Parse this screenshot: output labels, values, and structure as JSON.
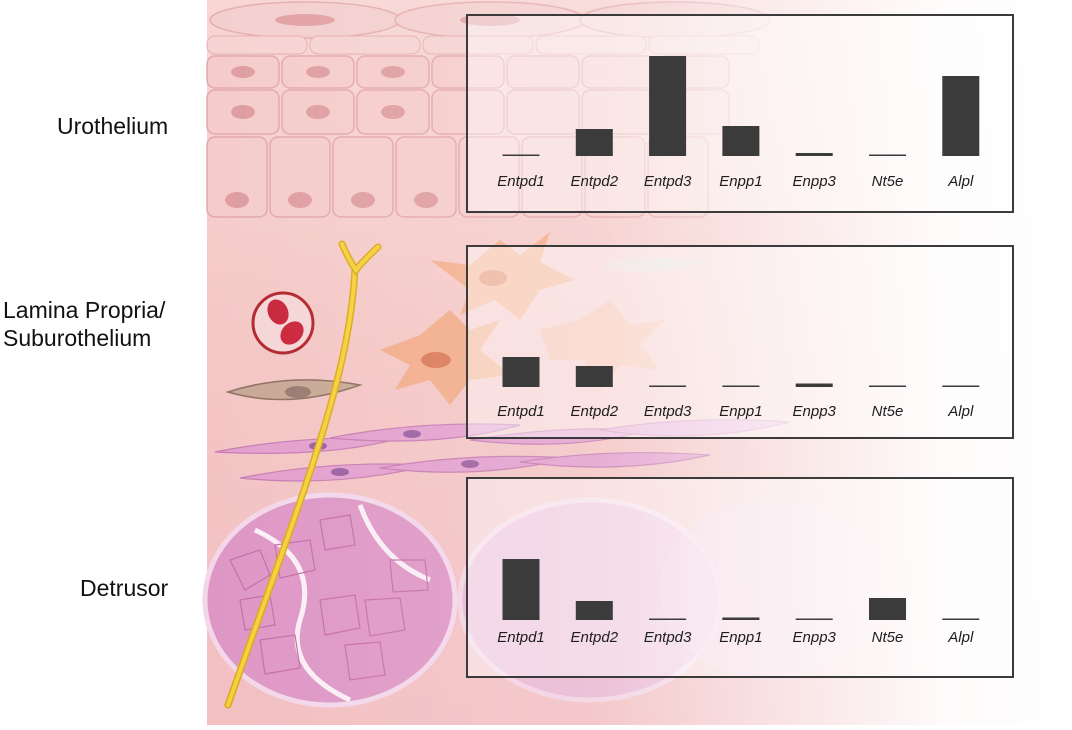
{
  "layer_labels": {
    "urothelium": "Urothelium",
    "lamina_propria_line1": "Lamina Propria/",
    "lamina_propria_line2": "Suburothelium",
    "detrusor": "Detrusor"
  },
  "colors": {
    "bar": "#3b3b3b",
    "panel_border": "#3b3b3b",
    "tissue_pink": "#f3c4c2",
    "muscle_pink": "#d88fb8",
    "nerve_yellow": "#f5cf3c",
    "fibroblast_orange": "#f2a884"
  },
  "icons": [
    "urothelial-cell-icon",
    "fibroblast-icon",
    "nerve-fiber-icon",
    "blood-vessel-icon",
    "smooth-muscle-bundle-icon"
  ],
  "chart_data": [
    {
      "type": "bar",
      "layer": "Urothelium",
      "categories": [
        "Entpd1",
        "Entpd2",
        "Entpd3",
        "Enpp1",
        "Enpp3",
        "Nt5e",
        "Alpl"
      ],
      "values": [
        0.5,
        27,
        100,
        30,
        3,
        0.5,
        80
      ],
      "ylim": [
        0,
        100
      ],
      "grid": false,
      "axis_visible": false
    },
    {
      "type": "bar",
      "layer": "Lamina Propria/Suburothelium",
      "categories": [
        "Entpd1",
        "Entpd2",
        "Entpd3",
        "Enpp1",
        "Enpp3",
        "Nt5e",
        "Alpl"
      ],
      "values": [
        30,
        21,
        0.5,
        0.5,
        3.5,
        0.5,
        0.5
      ],
      "ylim": [
        0,
        100
      ],
      "grid": false,
      "axis_visible": false
    },
    {
      "type": "bar",
      "layer": "Detrusor",
      "categories": [
        "Entpd1",
        "Entpd2",
        "Entpd3",
        "Enpp1",
        "Enpp3",
        "Nt5e",
        "Alpl"
      ],
      "values": [
        61,
        19,
        0.5,
        2.5,
        1,
        22,
        1
      ],
      "ylim": [
        0,
        100
      ],
      "grid": false,
      "axis_visible": false
    }
  ]
}
